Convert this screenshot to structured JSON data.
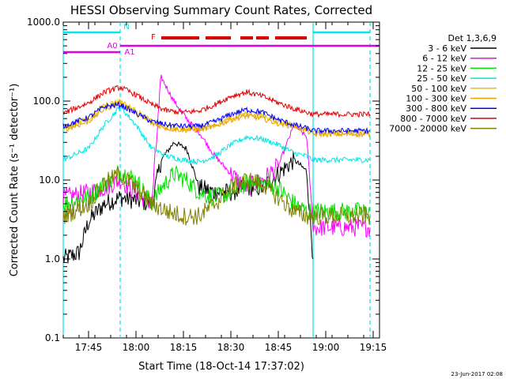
{
  "chart_data": {
    "type": "line",
    "title": "HESSI Observing Summary Count Rates, Corrected",
    "xlabel": "Start Time (18-Oct-14 17:37:02)",
    "ylabel": "Corrected Count Rate (s⁻¹ detector⁻¹)",
    "y_scale": "log",
    "ylim": [
      0.1,
      1000
    ],
    "xlim": [
      "17:37",
      "19:17"
    ],
    "x_ticks": [
      "17:45",
      "18:00",
      "18:15",
      "18:30",
      "18:45",
      "19:00",
      "19:15"
    ],
    "y_ticks": [
      "0.1",
      "1.0",
      "10.0",
      "100.0",
      "1000.0"
    ],
    "grid": false,
    "legend_title": "Det 1,3,6,9",
    "legend_position": "right",
    "footer_date": "23-Jun-2017 02:08",
    "flags": [
      {
        "label": "N",
        "color": "#00e5e5",
        "intervals": [
          [
            "17:37",
            "17:55"
          ],
          [
            "18:56",
            "19:14"
          ]
        ]
      },
      {
        "label": "F",
        "color": "#e00000",
        "intervals": [
          [
            "18:08",
            "18:20"
          ],
          [
            "18:22",
            "18:30"
          ],
          [
            "18:33",
            "18:37"
          ],
          [
            "18:38",
            "18:42"
          ],
          [
            "18:44",
            "18:54"
          ]
        ]
      },
      {
        "label": "A0",
        "color": "#e000e0",
        "intervals": [
          [
            "17:37",
            "17:55"
          ]
        ]
      },
      {
        "label": "A1",
        "color": "#e000e0",
        "intervals": [
          [
            "17:55",
            "19:17"
          ]
        ]
      }
    ],
    "vertical_markers": [
      {
        "time": "17:37",
        "style": "solid"
      },
      {
        "time": "17:55",
        "style": "dashed"
      },
      {
        "time": "18:56",
        "style": "solid"
      },
      {
        "time": "19:14",
        "style": "dashed"
      }
    ],
    "series": [
      {
        "name": "3 - 6 keV",
        "color": "#000000",
        "x": [
          "17:37",
          "17:42",
          "17:45",
          "17:50",
          "17:55",
          "18:00",
          "18:05",
          "18:08",
          "18:12",
          "18:16",
          "18:20",
          "18:25",
          "18:30",
          "18:35",
          "18:40",
          "18:45",
          "18:50",
          "18:54",
          "18:56"
        ],
        "values": [
          1.0,
          1.2,
          3.0,
          5.0,
          6.0,
          5.5,
          5.0,
          18,
          30,
          25,
          8,
          7,
          7,
          8,
          8,
          12,
          18,
          13,
          1.0
        ]
      },
      {
        "name": "6 - 12 keV",
        "color": "#ff00ff",
        "x": [
          "17:37",
          "17:45",
          "17:50",
          "17:55",
          "18:00",
          "18:05",
          "18:08",
          "18:12",
          "18:16",
          "18:20",
          "18:25",
          "18:30",
          "18:35",
          "18:40",
          "18:45",
          "18:50",
          "18:54",
          "18:56",
          "19:05",
          "19:14"
        ],
        "values": [
          6,
          7,
          8,
          10,
          7,
          5,
          200,
          100,
          60,
          40,
          20,
          12,
          8,
          10,
          15,
          50,
          35,
          2.5,
          2.5,
          2.5
        ]
      },
      {
        "name": "12 - 25 keV",
        "color": "#00e000",
        "x": [
          "17:37",
          "17:45",
          "17:50",
          "17:55",
          "18:00",
          "18:05",
          "18:08",
          "18:12",
          "18:16",
          "18:20",
          "18:25",
          "18:30",
          "18:35",
          "18:40",
          "18:45",
          "18:50",
          "18:54",
          "18:56",
          "19:05",
          "19:14"
        ],
        "values": [
          5,
          6,
          9,
          13,
          10,
          5,
          8,
          12,
          10,
          7,
          6,
          7,
          9,
          9,
          8,
          5,
          4,
          4,
          4,
          4
        ]
      },
      {
        "name": "25 - 50 keV",
        "color": "#00e5e5",
        "x": [
          "17:37",
          "17:45",
          "17:50",
          "17:55",
          "18:00",
          "18:05",
          "18:10",
          "18:15",
          "18:20",
          "18:25",
          "18:30",
          "18:35",
          "18:40",
          "18:45",
          "18:50",
          "18:54",
          "18:56",
          "19:05",
          "19:14"
        ],
        "values": [
          18,
          25,
          50,
          85,
          50,
          25,
          20,
          18,
          17,
          20,
          28,
          35,
          33,
          28,
          22,
          20,
          18,
          18,
          18
        ]
      },
      {
        "name": "50 - 100 keV",
        "color": "#e8c000",
        "x": [
          "17:37",
          "17:45",
          "17:50",
          "17:55",
          "18:00",
          "18:05",
          "18:10",
          "18:15",
          "18:20",
          "18:25",
          "18:30",
          "18:35",
          "18:40",
          "18:45",
          "18:50",
          "18:54",
          "18:56",
          "19:05",
          "19:14"
        ],
        "values": [
          45,
          60,
          90,
          100,
          75,
          55,
          47,
          45,
          45,
          50,
          60,
          70,
          65,
          55,
          50,
          45,
          40,
          40,
          40
        ]
      },
      {
        "name": "100 - 300 keV",
        "color": "#e8a000",
        "x": [
          "17:37",
          "17:45",
          "17:50",
          "17:55",
          "18:00",
          "18:05",
          "18:10",
          "18:15",
          "18:20",
          "18:25",
          "18:30",
          "18:35",
          "18:40",
          "18:45",
          "18:50",
          "18:54",
          "18:56",
          "19:05",
          "19:14"
        ],
        "values": [
          43,
          55,
          80,
          95,
          70,
          52,
          45,
          43,
          43,
          48,
          58,
          65,
          60,
          52,
          48,
          42,
          38,
          38,
          38
        ]
      },
      {
        "name": "300 - 800 keV",
        "color": "#0000ff",
        "x": [
          "17:37",
          "17:45",
          "17:50",
          "17:55",
          "18:00",
          "18:05",
          "18:10",
          "18:15",
          "18:20",
          "18:25",
          "18:30",
          "18:35",
          "18:40",
          "18:45",
          "18:50",
          "18:54",
          "18:56",
          "19:05",
          "19:14"
        ],
        "values": [
          48,
          62,
          85,
          90,
          70,
          55,
          50,
          48,
          48,
          55,
          68,
          78,
          72,
          58,
          50,
          45,
          42,
          42,
          42
        ]
      },
      {
        "name": "800 - 7000 keV",
        "color": "#e00000",
        "x": [
          "17:37",
          "17:45",
          "17:50",
          "17:55",
          "18:00",
          "18:05",
          "18:10",
          "18:15",
          "18:20",
          "18:25",
          "18:30",
          "18:35",
          "18:40",
          "18:45",
          "18:50",
          "18:54",
          "18:56",
          "19:05",
          "19:14"
        ],
        "values": [
          70,
          95,
          130,
          150,
          120,
          90,
          75,
          72,
          75,
          90,
          115,
          130,
          115,
          95,
          80,
          72,
          68,
          68,
          68
        ]
      },
      {
        "name": "7000 - 20000 keV",
        "color": "#808000",
        "x": [
          "17:37",
          "17:45",
          "17:50",
          "17:55",
          "18:00",
          "18:05",
          "18:10",
          "18:15",
          "18:20",
          "18:25",
          "18:30",
          "18:35",
          "18:40",
          "18:45",
          "18:50",
          "18:54",
          "18:56",
          "19:05",
          "19:14"
        ],
        "values": [
          3.5,
          5,
          9,
          12,
          8,
          5,
          4,
          3.5,
          3.5,
          5,
          8,
          10,
          9,
          6,
          4,
          3.5,
          3.5,
          3.5,
          3.5
        ]
      }
    ]
  }
}
